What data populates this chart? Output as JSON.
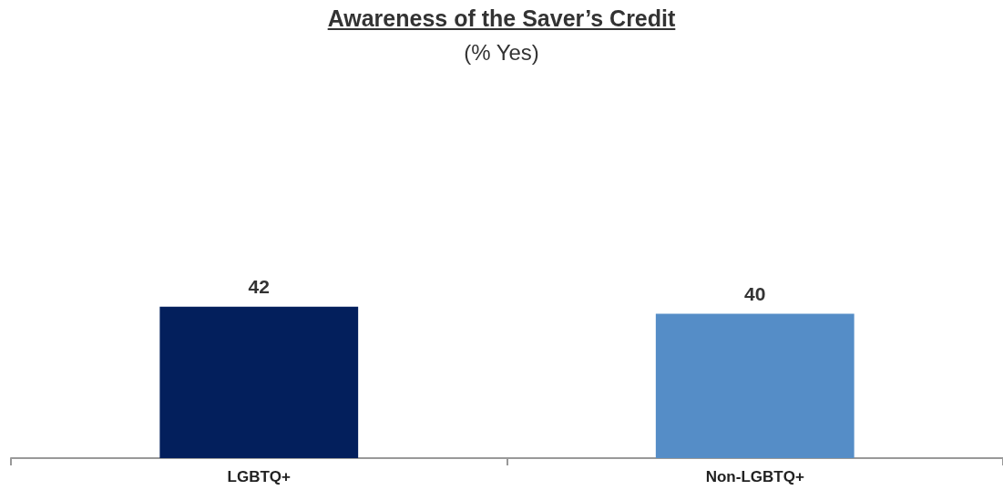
{
  "chart_data": {
    "type": "bar",
    "title": "Awareness of the Saver’s Credit",
    "subtitle": "(% Yes)",
    "categories": [
      "LGBTQ+",
      "Non-LGBTQ+"
    ],
    "values": [
      42,
      40
    ],
    "colors": [
      "#031f5c",
      "#558dc7"
    ],
    "tick_labels": "x",
    "data_labels": true
  }
}
